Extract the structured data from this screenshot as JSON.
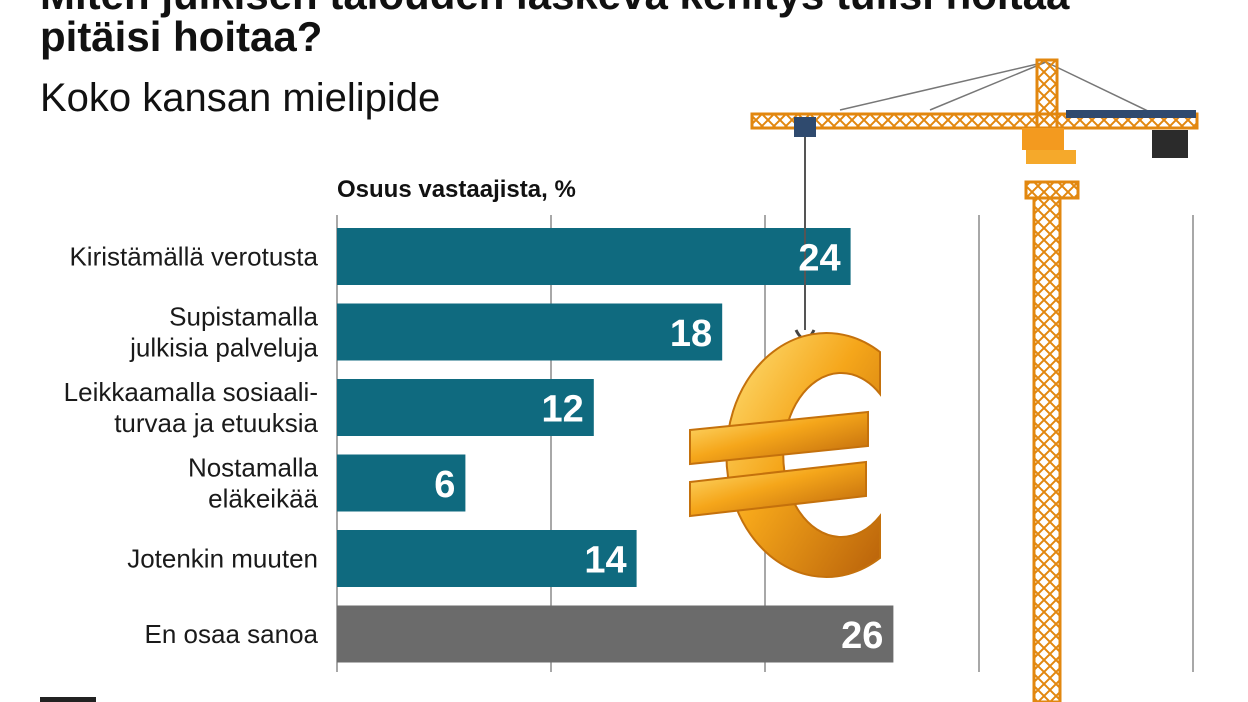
{
  "title_line_1": "Miten julkisen talouden laskeva kehitys tulisi hoitaa",
  "title_line_2": "pitäisi hoitaa?",
  "subtitle": "Koko kansan mielipide",
  "chart_data": {
    "type": "bar",
    "orientation": "horizontal",
    "title": "pitäisi hoitaa?",
    "subtitle": "Koko kansan mielipide",
    "xlabel": "Osuus vastaajista, %",
    "ylabel": "",
    "xlim": [
      0,
      40
    ],
    "grid": true,
    "categories": [
      [
        "Kiristämällä verotusta"
      ],
      [
        "Supistamalla",
        "julkisia palveluja"
      ],
      [
        "Leikkaamalla sosiaali-",
        "turvaa ja etuuksia"
      ],
      [
        "Nostamalla",
        "eläkeikää"
      ],
      [
        "Jotenkin muuten"
      ],
      [
        "En osaa sanoa"
      ]
    ],
    "values": [
      24,
      18,
      12,
      6,
      14,
      26
    ],
    "bar_colors": [
      "#0f6a7f",
      "#0f6a7f",
      "#0f6a7f",
      "#0f6a7f",
      "#0f6a7f",
      "#6b6b6b"
    ]
  },
  "colors": {
    "bar": "#0f6a7f",
    "bar_neutral": "#6b6b6b",
    "grid": "#8c8c8c",
    "crane": "#f39a1f",
    "euro": "#f2a317"
  },
  "illustration_icons": [
    "tower-crane-icon",
    "euro-sign-icon"
  ]
}
